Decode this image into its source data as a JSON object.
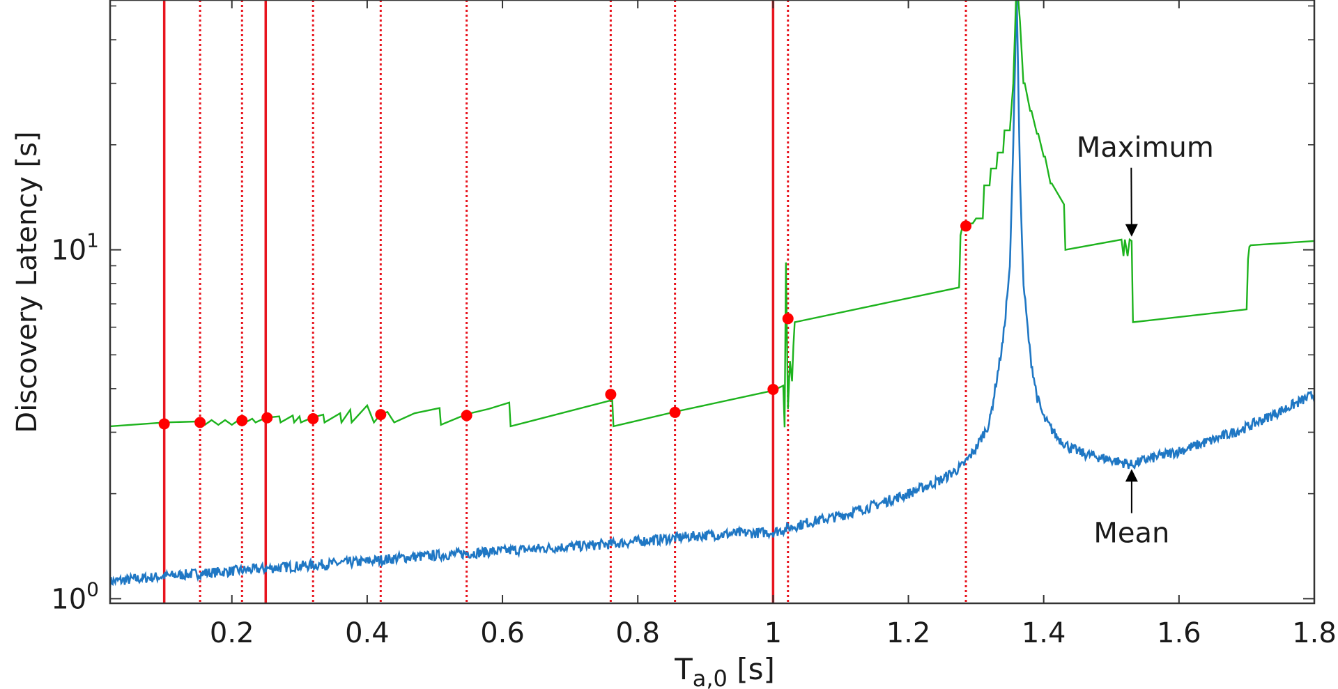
{
  "chart_data": {
    "type": "line",
    "title": "",
    "xlabel": "T",
    "xlabel_sub": "a,0",
    "xlabel_unit": " [s]",
    "ylabel": "Discovery Latency [s]",
    "xlim": [
      0.02,
      1.8
    ],
    "ylim": [
      0.97,
      52
    ],
    "yscale": "log",
    "grid": false,
    "x_ticks": [
      0.2,
      0.4,
      0.6,
      0.8,
      1.0,
      1.2,
      1.4,
      1.6,
      1.8
    ],
    "x_tick_labels": [
      "0.2",
      "0.4",
      "0.6",
      "0.8",
      "1",
      "1.2",
      "1.4",
      "1.6",
      "1.8"
    ],
    "y_ticks": [
      1,
      10
    ],
    "y_tick_labels": [
      {
        "base": "10",
        "exp": "0"
      },
      {
        "base": "10",
        "exp": "1"
      }
    ],
    "series": [
      {
        "name": "Maximum",
        "color": "#1db31d",
        "x": [
          0.02,
          0.1,
          0.15,
          0.16,
          0.17,
          0.18,
          0.19,
          0.2,
          0.21,
          0.22,
          0.23,
          0.235,
          0.25,
          0.27,
          0.272,
          0.29,
          0.292,
          0.3,
          0.302,
          0.318,
          0.335,
          0.337,
          0.36,
          0.362,
          0.375,
          0.377,
          0.4,
          0.41,
          0.42,
          0.43,
          0.44,
          0.47,
          0.507,
          0.509,
          0.547,
          0.58,
          0.61,
          0.612,
          0.76,
          0.762,
          0.764,
          0.86,
          1.0,
          1.015,
          1.017,
          1.019,
          1.022,
          1.025,
          1.028,
          1.03,
          1.032,
          1.275,
          1.277,
          1.28,
          1.285,
          1.29,
          1.295,
          1.3,
          1.31,
          1.312,
          1.32,
          1.322,
          1.33,
          1.332,
          1.34,
          1.342,
          1.35,
          1.355,
          1.358,
          1.36,
          1.365,
          1.37,
          1.372,
          1.38,
          1.382,
          1.39,
          1.392,
          1.4,
          1.402,
          1.41,
          1.412,
          1.43,
          1.432,
          1.515,
          1.518,
          1.52,
          1.524,
          1.527,
          1.53,
          1.532,
          1.7,
          1.702,
          1.704,
          1.706,
          1.8
        ],
        "y": [
          3.12,
          3.2,
          3.22,
          3.15,
          3.25,
          3.15,
          3.25,
          3.15,
          3.25,
          3.2,
          3.28,
          3.2,
          3.3,
          3.33,
          3.2,
          3.35,
          3.2,
          3.33,
          3.2,
          3.3,
          3.37,
          3.2,
          3.4,
          3.2,
          3.48,
          3.2,
          3.58,
          3.2,
          3.38,
          3.43,
          3.2,
          3.4,
          3.52,
          3.15,
          3.38,
          3.5,
          3.65,
          3.12,
          3.7,
          3.82,
          3.12,
          3.45,
          3.95,
          4.08,
          3.1,
          9.2,
          3.5,
          4.8,
          4.2,
          5.3,
          6.2,
          7.8,
          11.0,
          11.7,
          11.7,
          11.9,
          11.9,
          12.3,
          12.3,
          15.3,
          15.3,
          17.1,
          17.1,
          19.0,
          19.0,
          22.0,
          22.0,
          30.0,
          45.0,
          60.0,
          45.0,
          30.0,
          30.0,
          25.0,
          25.0,
          21.5,
          21.5,
          18.5,
          18.5,
          15.5,
          15.5,
          13.5,
          10.0,
          10.7,
          9.6,
          10.7,
          9.6,
          10.7,
          10.6,
          6.2,
          6.75,
          9.4,
          10.2,
          10.3,
          10.6
        ]
      },
      {
        "name": "Mean",
        "color": "#1f77c4",
        "x": [
          0.02,
          0.1,
          0.15,
          0.2,
          0.25,
          0.3,
          0.35,
          0.4,
          0.45,
          0.5,
          0.55,
          0.6,
          0.65,
          0.7,
          0.75,
          0.8,
          0.85,
          0.9,
          0.95,
          1.0,
          1.05,
          1.1,
          1.15,
          1.2,
          1.25,
          1.28,
          1.3,
          1.32,
          1.34,
          1.35,
          1.355,
          1.36,
          1.365,
          1.37,
          1.38,
          1.39,
          1.4,
          1.42,
          1.44,
          1.46,
          1.48,
          1.5,
          1.53,
          1.55,
          1.6,
          1.65,
          1.7,
          1.75,
          1.8
        ],
        "y": [
          1.12,
          1.16,
          1.18,
          1.2,
          1.22,
          1.24,
          1.26,
          1.28,
          1.31,
          1.33,
          1.35,
          1.37,
          1.39,
          1.41,
          1.43,
          1.46,
          1.49,
          1.52,
          1.54,
          1.55,
          1.65,
          1.73,
          1.85,
          2.0,
          2.2,
          2.4,
          2.7,
          3.2,
          5.5,
          9.0,
          20.0,
          55.0,
          16.0,
          8.0,
          5.0,
          3.8,
          3.3,
          2.9,
          2.7,
          2.6,
          2.55,
          2.5,
          2.42,
          2.5,
          2.65,
          2.85,
          3.1,
          3.45,
          3.85
        ]
      }
    ],
    "markers": {
      "color": "#ff0000",
      "x": [
        0.1,
        0.153,
        0.215,
        0.252,
        0.32,
        0.42,
        0.547,
        0.76,
        0.855,
        1.0,
        1.022,
        1.285
      ],
      "y": [
        3.17,
        3.2,
        3.24,
        3.3,
        3.28,
        3.37,
        3.35,
        3.85,
        3.42,
        3.98,
        6.35,
        11.7
      ]
    },
    "vlines_solid": [
      0.1,
      0.25,
      1.0
    ],
    "vlines_dotted": [
      0.153,
      0.215,
      0.32,
      0.42,
      0.547,
      0.76,
      0.855,
      1.022,
      1.285
    ],
    "vline_color": "#e8141e",
    "annotations": [
      {
        "text": "Maximum",
        "target_x": 1.53,
        "target_y": 10.6,
        "text_x": 1.55,
        "text_y": 18.5
      },
      {
        "text": "Mean",
        "target_x": 1.53,
        "target_y": 2.42,
        "text_x": 1.53,
        "text_y": 1.45
      }
    ]
  }
}
